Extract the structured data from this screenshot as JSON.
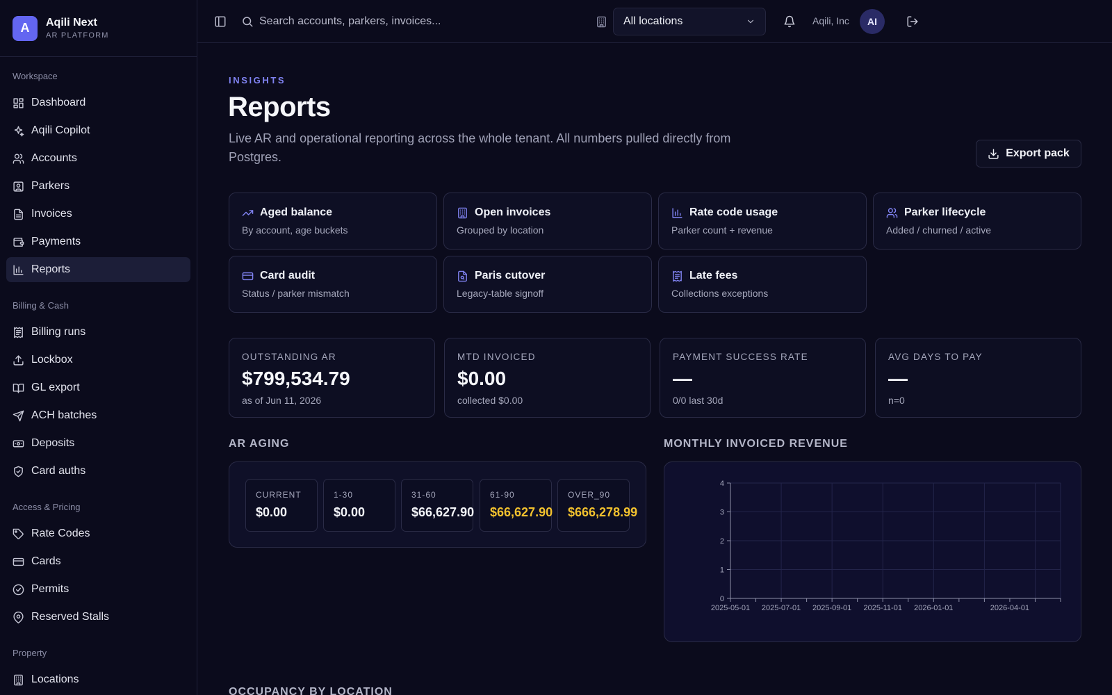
{
  "brand": {
    "initial": "A",
    "name": "Aqili Next",
    "subtitle": "AR PLATFORM"
  },
  "sidebar": {
    "sections": [
      {
        "title": "Workspace",
        "items": [
          {
            "label": "Dashboard",
            "icon": "dashboard-icon"
          },
          {
            "label": "Aqili Copilot",
            "icon": "sparkles-icon"
          },
          {
            "label": "Accounts",
            "icon": "users-icon"
          },
          {
            "label": "Parkers",
            "icon": "contact-icon"
          },
          {
            "label": "Invoices",
            "icon": "file-text-icon"
          },
          {
            "label": "Payments",
            "icon": "wallet-icon"
          },
          {
            "label": "Reports",
            "icon": "bar-chart-icon",
            "active": true
          }
        ]
      },
      {
        "title": "Billing & Cash",
        "items": [
          {
            "label": "Billing runs",
            "icon": "receipt-icon"
          },
          {
            "label": "Lockbox",
            "icon": "upload-icon"
          },
          {
            "label": "GL export",
            "icon": "book-icon"
          },
          {
            "label": "ACH batches",
            "icon": "send-icon"
          },
          {
            "label": "Deposits",
            "icon": "banknote-icon"
          },
          {
            "label": "Card auths",
            "icon": "shield-icon"
          }
        ]
      },
      {
        "title": "Access & Pricing",
        "items": [
          {
            "label": "Rate Codes",
            "icon": "tag-icon"
          },
          {
            "label": "Cards",
            "icon": "credit-card-icon"
          },
          {
            "label": "Permits",
            "icon": "badge-check-icon"
          },
          {
            "label": "Reserved Stalls",
            "icon": "map-pin-icon"
          }
        ]
      },
      {
        "title": "Property",
        "items": [
          {
            "label": "Locations",
            "icon": "building-icon"
          }
        ]
      }
    ]
  },
  "topbar": {
    "search_placeholder": "Search accounts, parkers, invoices...",
    "location_select": "All locations",
    "org_name": "Aqili, Inc",
    "avatar_initials": "AI"
  },
  "page": {
    "eyebrow": "INSIGHTS",
    "title": "Reports",
    "description": "Live AR and operational reporting across the whole tenant. All numbers pulled directly from Postgres.",
    "export_label": "Export pack"
  },
  "report_cards": [
    {
      "title": "Aged balance",
      "subtitle": "By account, age buckets",
      "icon": "trending-up-icon"
    },
    {
      "title": "Open invoices",
      "subtitle": "Grouped by location",
      "icon": "building-icon"
    },
    {
      "title": "Rate code usage",
      "subtitle": "Parker count + revenue",
      "icon": "bar-chart-icon"
    },
    {
      "title": "Parker lifecycle",
      "subtitle": "Added / churned / active",
      "icon": "users-icon"
    },
    {
      "title": "Card audit",
      "subtitle": "Status / parker mismatch",
      "icon": "credit-card-icon"
    },
    {
      "title": "Paris cutover",
      "subtitle": "Legacy-table signoff",
      "icon": "file-search-icon"
    },
    {
      "title": "Late fees",
      "subtitle": "Collections exceptions",
      "icon": "receipt-icon"
    }
  ],
  "kpis": [
    {
      "label": "OUTSTANDING AR",
      "value": "$799,534.79",
      "sub": "as of Jun 11, 2026"
    },
    {
      "label": "MTD INVOICED",
      "value": "$0.00",
      "sub": "collected $0.00"
    },
    {
      "label": "PAYMENT SUCCESS RATE",
      "value": "—",
      "sub": "0/0 last 30d"
    },
    {
      "label": "AVG DAYS TO PAY",
      "value": "—",
      "sub": "n=0"
    }
  ],
  "ar_aging": {
    "title": "AR AGING",
    "buckets": [
      {
        "label": "CURRENT",
        "value": "$0.00",
        "warn": false
      },
      {
        "label": "1-30",
        "value": "$0.00",
        "warn": false
      },
      {
        "label": "31-60",
        "value": "$66,627.90",
        "warn": false
      },
      {
        "label": "61-90",
        "value": "$66,627.90",
        "warn": true
      },
      {
        "label": "OVER_90",
        "value": "$666,278.99",
        "warn": true
      }
    ]
  },
  "revenue_chart_title": "MONTHLY INVOICED REVENUE",
  "chart_data": {
    "type": "line",
    "title": "MONTHLY INVOICED REVENUE",
    "x": [
      "2025-05-01",
      "2025-06-01",
      "2025-07-01",
      "2025-08-01",
      "2025-09-01",
      "2025-10-01",
      "2025-11-01",
      "2025-12-01",
      "2026-01-01",
      "2026-02-01",
      "2026-03-01",
      "2026-04-01",
      "2026-05-01",
      "2026-06-01"
    ],
    "x_tick_labels": [
      "2025-05-01",
      "2025-07-01",
      "2025-09-01",
      "2025-11-01",
      "2026-01-01",
      "2026-04-01"
    ],
    "series": [],
    "ylim": [
      0,
      4
    ],
    "y_ticks": [
      0,
      1,
      2,
      3,
      4
    ],
    "grid": true,
    "grid_color": "#23244a"
  },
  "bottom_section_title": "OCCUPANCY BY LOCATION",
  "colors": {
    "accent": "#6366f1",
    "warn": "#f2c12e",
    "background": "#0b0b1c"
  }
}
